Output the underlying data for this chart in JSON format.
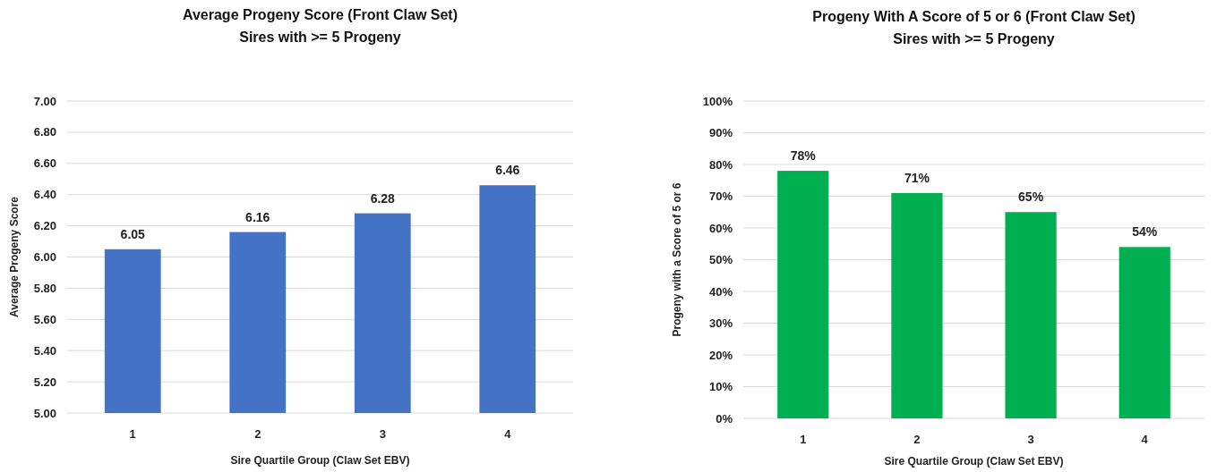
{
  "chart_data": [
    {
      "type": "bar",
      "title": "Average Progeny Score (Front Claw Set)",
      "subtitle": "Sires with >= 5 Progeny",
      "xlabel": "Sire Quartile Group (Claw Set EBV)",
      "ylabel": "Average Progeny Score",
      "categories": [
        "1",
        "2",
        "3",
        "4"
      ],
      "values": [
        6.05,
        6.16,
        6.28,
        6.46
      ],
      "color": "#4472c4",
      "data_labels": true,
      "ylim": [
        5,
        7
      ],
      "yticks": [
        {
          "value": 5,
          "label": "5.00"
        },
        {
          "value": 5.2,
          "label": "5.20"
        },
        {
          "value": 5.4,
          "label": "5.40"
        },
        {
          "value": 5.6,
          "label": "5.60"
        },
        {
          "value": 5.8,
          "label": "5.80"
        },
        {
          "value": 6,
          "label": "6.00"
        },
        {
          "value": 6.2,
          "label": "6.20"
        },
        {
          "value": 6.4,
          "label": "6.40"
        },
        {
          "value": 6.6,
          "label": "6.60"
        },
        {
          "value": 6.8,
          "label": "6.80"
        },
        {
          "value": 7,
          "label": "7.00"
        }
      ],
      "grid": "y"
    },
    {
      "type": "bar",
      "title": "Progeny With A Score of 5 or 6 (Front Claw Set)",
      "subtitle": "Sires with >= 5 Progeny",
      "xlabel": "Sire Quartile Group (Claw Set EBV)",
      "ylabel": "Progeny with a Score of 5 or 6",
      "categories": [
        "1",
        "2",
        "3",
        "4"
      ],
      "values": [
        78,
        71,
        65,
        54
      ],
      "value_labels": [
        "78%",
        "71%",
        "65%",
        "54%"
      ],
      "color": "#00b050",
      "ylim": [
        0,
        100
      ],
      "yticks": [
        {
          "value": 0,
          "label": "0%"
        },
        {
          "value": 10,
          "label": "10%"
        },
        {
          "value": 20,
          "label": "20%"
        },
        {
          "value": 30,
          "label": "30%"
        },
        {
          "value": 40,
          "label": "40%"
        },
        {
          "value": 50,
          "label": "50%"
        },
        {
          "value": 60,
          "label": "60%"
        },
        {
          "value": 70,
          "label": "70%"
        },
        {
          "value": 80,
          "label": "80%"
        },
        {
          "value": 90,
          "label": "90%"
        },
        {
          "value": 100,
          "label": "100%"
        }
      ],
      "grid": "y"
    }
  ]
}
